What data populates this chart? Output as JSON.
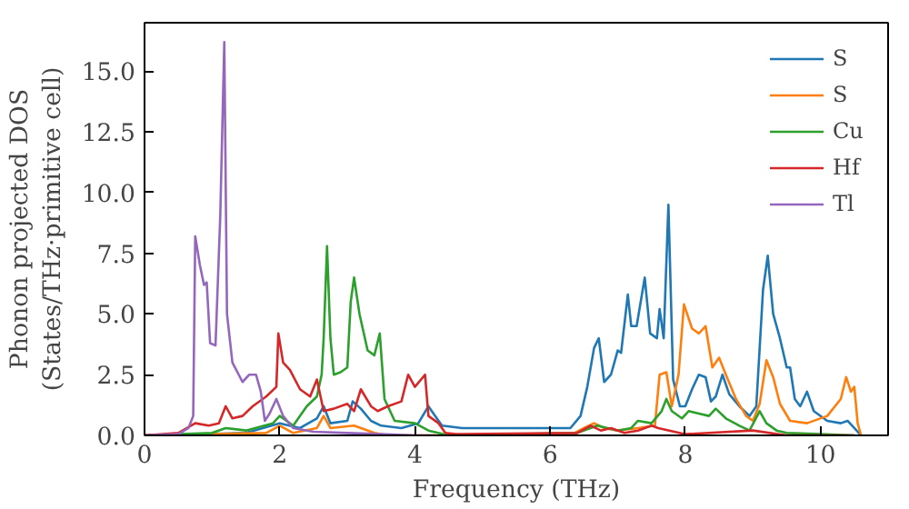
{
  "chart_data": {
    "type": "line",
    "xlabel": "Frequency (THz)",
    "ylabel": "Phonon projected DOS\n(States/THz·primitive cell)",
    "xlim": [
      0,
      11
    ],
    "ylim": [
      0,
      17
    ],
    "xticks": [
      0,
      2,
      4,
      6,
      8,
      10
    ],
    "yticks": [
      {
        "value": 0,
        "label": "0.0"
      },
      {
        "value": 2.5,
        "label": "2.5"
      },
      {
        "value": 5,
        "label": "5.0"
      },
      {
        "value": 7.5,
        "label": "7.5"
      },
      {
        "value": 10,
        "label": "10.0"
      },
      {
        "value": 12.5,
        "label": "12.5"
      },
      {
        "value": 15,
        "label": "15.0"
      }
    ],
    "grid": false,
    "legend": "top right",
    "series": [
      {
        "name": "S",
        "color": "#1f77b4",
        "x": [
          0,
          1.5,
          2.0,
          2.3,
          2.55,
          2.65,
          2.75,
          3.0,
          3.08,
          3.2,
          3.35,
          3.5,
          3.8,
          4.05,
          4.2,
          4.3,
          4.4,
          4.7,
          5.5,
          6.3,
          6.45,
          6.55,
          6.65,
          6.72,
          6.8,
          6.9,
          7.0,
          7.05,
          7.15,
          7.2,
          7.28,
          7.4,
          7.48,
          7.58,
          7.62,
          7.68,
          7.75,
          7.82,
          7.92,
          8.0,
          8.1,
          8.2,
          8.3,
          8.38,
          8.45,
          8.55,
          8.65,
          8.8,
          8.95,
          9.05,
          9.15,
          9.22,
          9.3,
          9.4,
          9.5,
          9.55,
          9.62,
          9.7,
          9.8,
          9.9,
          10.1,
          10.3,
          10.4,
          10.5,
          10.6
        ],
        "values": [
          0,
          0.1,
          0.5,
          0.3,
          0.7,
          1.2,
          0.5,
          0.6,
          1.4,
          1.1,
          0.6,
          0.4,
          0.3,
          0.5,
          1.2,
          0.8,
          0.4,
          0.3,
          0.3,
          0.3,
          0.8,
          2.0,
          3.6,
          4.0,
          2.2,
          2.5,
          3.5,
          3.4,
          5.8,
          4.5,
          4.5,
          6.5,
          4.2,
          4.0,
          5.2,
          4.0,
          9.5,
          2.3,
          1.2,
          1.2,
          1.9,
          2.5,
          2.4,
          1.4,
          1.6,
          2.5,
          1.7,
          1.2,
          0.8,
          1.2,
          6.0,
          7.4,
          5.0,
          4.0,
          2.8,
          2.8,
          1.5,
          1.2,
          1.8,
          1.0,
          0.6,
          0.5,
          0.6,
          0.3,
          0
        ]
      },
      {
        "name": "S",
        "color": "#ff7f0e",
        "x": [
          0,
          1.8,
          2.0,
          2.2,
          2.55,
          2.65,
          2.75,
          3.1,
          3.4,
          3.6,
          6.3,
          6.5,
          6.65,
          6.8,
          7.0,
          7.3,
          7.55,
          7.62,
          7.72,
          7.8,
          7.9,
          7.98,
          8.1,
          8.2,
          8.3,
          8.4,
          8.5,
          8.6,
          8.75,
          8.9,
          9.0,
          9.1,
          9.2,
          9.3,
          9.4,
          9.55,
          9.8,
          10.1,
          10.3,
          10.38,
          10.45,
          10.5,
          10.55,
          10.6
        ],
        "values": [
          0,
          0.1,
          0.4,
          0.1,
          0.3,
          0.8,
          0.3,
          0.4,
          0.1,
          0,
          0,
          0.3,
          0.5,
          0.3,
          0.2,
          0.3,
          0.4,
          2.5,
          2.6,
          1.2,
          2.5,
          5.4,
          4.4,
          4.2,
          4.5,
          2.8,
          3.2,
          2.5,
          1.5,
          0.8,
          0.6,
          1.3,
          3.1,
          2.4,
          1.3,
          0.6,
          0.5,
          0.8,
          1.5,
          2.4,
          1.8,
          2.0,
          0.5,
          0
        ]
      },
      {
        "name": "Cu",
        "color": "#2ca02c",
        "x": [
          0,
          1,
          1.2,
          1.5,
          1.9,
          2.0,
          2.2,
          2.4,
          2.55,
          2.62,
          2.65,
          2.7,
          2.75,
          2.8,
          2.9,
          3.0,
          3.05,
          3.1,
          3.18,
          3.3,
          3.4,
          3.48,
          3.55,
          3.7,
          4.0,
          4.2,
          4.5,
          6.4,
          6.7,
          7.0,
          7.2,
          7.3,
          7.5,
          7.65,
          7.72,
          7.8,
          7.95,
          8.05,
          8.2,
          8.35,
          8.45,
          8.6,
          8.8,
          8.95,
          9.1,
          9.2,
          9.35,
          9.5,
          10.0,
          10.5
        ],
        "values": [
          0,
          0.1,
          0.3,
          0.2,
          0.5,
          0.8,
          0.4,
          1.2,
          1.6,
          2.5,
          4,
          7.8,
          4,
          2.5,
          2.6,
          2.8,
          5.5,
          6.5,
          5.0,
          3.5,
          3.3,
          4.2,
          1.5,
          0.6,
          0.5,
          0.2,
          0,
          0.1,
          0.4,
          0.2,
          0.3,
          0.6,
          0.5,
          1.0,
          1.5,
          1.0,
          0.7,
          1.0,
          0.9,
          0.8,
          1.1,
          0.7,
          0.4,
          0.2,
          1.0,
          0.5,
          0.2,
          0.1,
          0.05,
          0
        ]
      },
      {
        "name": "Hf",
        "color": "#d62728",
        "x": [
          0,
          0.5,
          0.75,
          0.95,
          1.1,
          1.2,
          1.3,
          1.45,
          1.6,
          1.8,
          1.95,
          1.98,
          2.05,
          2.15,
          2.3,
          2.45,
          2.55,
          2.65,
          2.8,
          3.0,
          3.1,
          3.2,
          3.35,
          3.45,
          3.6,
          3.8,
          3.9,
          4.0,
          4.15,
          4.2,
          4.35,
          4.45,
          4.6,
          6.4,
          6.6,
          6.75,
          6.9,
          7.1,
          7.3,
          7.5,
          7.6,
          8.0,
          9.0,
          9.5,
          10.5
        ],
        "values": [
          0,
          0.1,
          0.5,
          0.4,
          0.5,
          1.2,
          0.7,
          0.8,
          1.2,
          1.6,
          2.0,
          4.2,
          3.0,
          2.7,
          1.9,
          1.6,
          2.3,
          1.0,
          1.1,
          1.3,
          1.0,
          1.9,
          1.2,
          1.0,
          1.2,
          1.4,
          2.5,
          2.0,
          2.5,
          0.8,
          0.5,
          0.1,
          0.05,
          0.1,
          0.4,
          0.2,
          0.3,
          0.1,
          0.2,
          0.4,
          0.3,
          0.05,
          0.2,
          0,
          0
        ]
      },
      {
        "name": "Tl",
        "color": "#9467bd",
        "x": [
          0,
          0.5,
          0.65,
          0.72,
          0.75,
          0.82,
          0.88,
          0.92,
          0.97,
          1.05,
          1.12,
          1.18,
          1.22,
          1.3,
          1.45,
          1.55,
          1.65,
          1.72,
          1.78,
          1.85,
          1.95,
          2.05,
          2.2,
          2.5,
          3.0,
          3.5,
          4.0,
          4.3
        ],
        "values": [
          0,
          0.05,
          0.3,
          0.8,
          8.2,
          7.0,
          6.2,
          6.3,
          3.8,
          3.7,
          9.0,
          16.2,
          5,
          3.0,
          2.2,
          2.5,
          2.5,
          1.8,
          0.6,
          0.9,
          1.5,
          0.8,
          0.3,
          0.15,
          0.1,
          0.05,
          0,
          0
        ]
      }
    ]
  }
}
